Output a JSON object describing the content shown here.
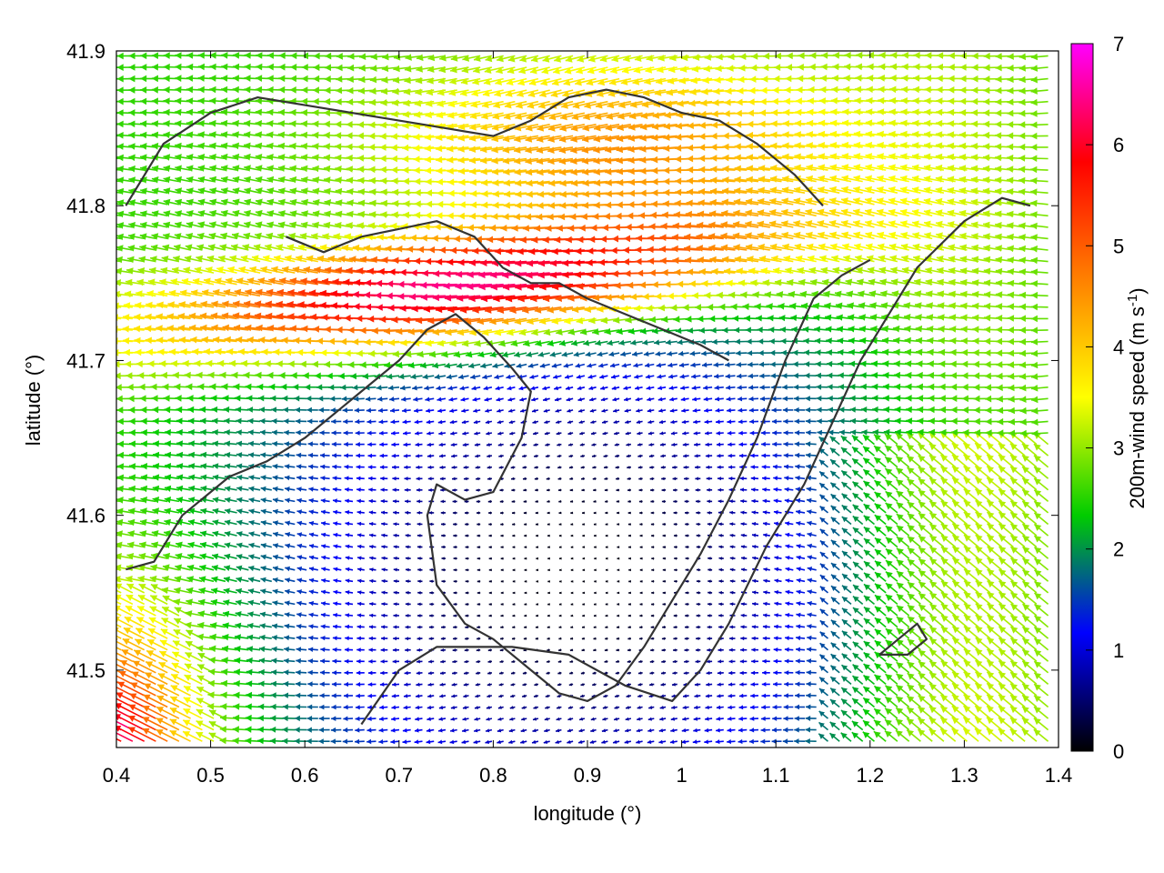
{
  "chart_data": {
    "type": "vector field",
    "xlabel": "longitude (°)",
    "ylabel": "latitude (°)",
    "colorbar_label_main": "200m-wind speed (m s",
    "colorbar_label_exp": "-1",
    "colorbar_label_tail": ")",
    "xlim": [
      0.4,
      1.4
    ],
    "ylim": [
      41.45,
      41.9
    ],
    "xticks": [
      "0.4",
      "0.5",
      "0.6",
      "0.7",
      "0.8",
      "0.9",
      "1",
      "1.1",
      "1.2",
      "1.3",
      "1.4"
    ],
    "yticks": [
      "41.5",
      "41.6",
      "41.7",
      "41.8",
      "41.9"
    ],
    "colorbar_ticks": [
      "0",
      "1",
      "2",
      "3",
      "4",
      "5",
      "6",
      "7"
    ],
    "colorbar_range": [
      0,
      7
    ],
    "colormap": [
      "#000000",
      "#0000ff",
      "#00cc00",
      "#ffff00",
      "#ff8000",
      "#ff0000",
      "#ff00ff"
    ],
    "contour_color": "#333333",
    "contours": [
      [
        [
          0.41,
          41.565
        ],
        [
          0.44,
          41.57
        ],
        [
          0.47,
          41.6
        ],
        [
          0.52,
          41.625
        ],
        [
          0.56,
          41.635
        ],
        [
          0.6,
          41.65
        ],
        [
          0.65,
          41.675
        ],
        [
          0.7,
          41.7
        ],
        [
          0.73,
          41.72
        ],
        [
          0.76,
          41.73
        ],
        [
          0.79,
          41.715
        ],
        [
          0.82,
          41.695
        ],
        [
          0.84,
          41.68
        ],
        [
          0.83,
          41.65
        ],
        [
          0.8,
          41.615
        ],
        [
          0.77,
          41.61
        ],
        [
          0.74,
          41.62
        ],
        [
          0.73,
          41.6
        ],
        [
          0.74,
          41.555
        ],
        [
          0.77,
          41.53
        ],
        [
          0.8,
          41.52
        ],
        [
          0.84,
          41.5
        ],
        [
          0.87,
          41.485
        ],
        [
          0.9,
          41.48
        ],
        [
          0.93,
          41.49
        ],
        [
          0.96,
          41.515
        ],
        [
          0.99,
          41.545
        ],
        [
          1.02,
          41.575
        ],
        [
          1.05,
          41.61
        ],
        [
          1.08,
          41.65
        ],
        [
          1.11,
          41.7
        ],
        [
          1.14,
          41.74
        ],
        [
          1.17,
          41.755
        ],
        [
          1.2,
          41.765
        ]
      ],
      [
        [
          0.66,
          41.465
        ],
        [
          0.7,
          41.5
        ],
        [
          0.74,
          41.515
        ],
        [
          0.82,
          41.515
        ],
        [
          0.88,
          41.51
        ],
        [
          0.94,
          41.49
        ],
        [
          0.99,
          41.48
        ],
        [
          1.02,
          41.5
        ],
        [
          1.05,
          41.53
        ],
        [
          1.09,
          41.58
        ],
        [
          1.13,
          41.62
        ],
        [
          1.16,
          41.66
        ],
        [
          1.19,
          41.7
        ],
        [
          1.22,
          41.73
        ],
        [
          1.25,
          41.76
        ],
        [
          1.3,
          41.79
        ],
        [
          1.34,
          41.805
        ],
        [
          1.37,
          41.8
        ]
      ],
      [
        [
          0.41,
          41.8
        ],
        [
          0.45,
          41.84
        ],
        [
          0.5,
          41.86
        ],
        [
          0.55,
          41.87
        ],
        [
          0.6,
          41.865
        ],
        [
          0.65,
          41.86
        ],
        [
          0.7,
          41.855
        ],
        [
          0.75,
          41.85
        ],
        [
          0.8,
          41.845
        ],
        [
          0.84,
          41.855
        ],
        [
          0.88,
          41.87
        ],
        [
          0.92,
          41.875
        ],
        [
          0.96,
          41.87
        ],
        [
          1.0,
          41.86
        ],
        [
          1.04,
          41.855
        ],
        [
          1.08,
          41.84
        ],
        [
          1.12,
          41.82
        ],
        [
          1.15,
          41.8
        ]
      ],
      [
        [
          0.58,
          41.78
        ],
        [
          0.62,
          41.77
        ],
        [
          0.66,
          41.78
        ],
        [
          0.7,
          41.785
        ],
        [
          0.74,
          41.79
        ],
        [
          0.78,
          41.78
        ],
        [
          0.81,
          41.76
        ],
        [
          0.84,
          41.75
        ],
        [
          0.87,
          41.75
        ],
        [
          0.9,
          41.74
        ],
        [
          0.94,
          41.73
        ],
        [
          0.98,
          41.72
        ],
        [
          1.02,
          41.71
        ],
        [
          1.05,
          41.7
        ]
      ],
      [
        [
          1.21,
          41.51
        ],
        [
          1.24,
          41.51
        ],
        [
          1.26,
          41.52
        ],
        [
          1.25,
          41.53
        ],
        [
          1.23,
          41.52
        ],
        [
          1.21,
          41.51
        ]
      ]
    ]
  }
}
